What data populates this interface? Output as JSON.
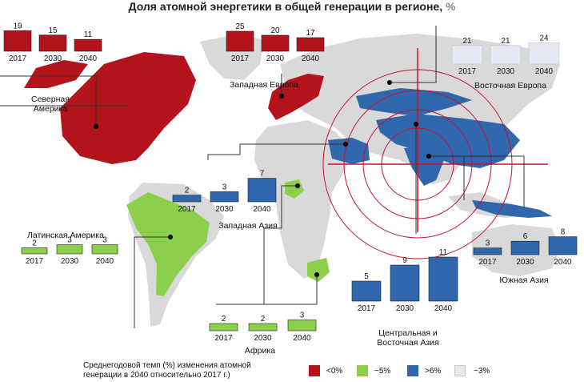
{
  "title": {
    "text": "Доля атомной энергетики в общей генерации в регионе,",
    "unit": "%"
  },
  "colors": {
    "red": "#b3141c",
    "green": "#8ccf4d",
    "blue": "#2f66ac",
    "pale": "#e4e8f0",
    "land": "#d9d9d9"
  },
  "chart_data": {
    "type": "bar",
    "title": "Доля атомной энергетики в общей генерации в регионе, %",
    "categories": [
      "2017",
      "2030",
      "2040"
    ],
    "series": [
      {
        "name": "Северная Америка",
        "values": [
          19,
          15,
          11
        ]
      },
      {
        "name": "Западная Европа",
        "values": [
          25,
          20,
          17
        ]
      },
      {
        "name": "Восточная Европа",
        "values": [
          21,
          21,
          24
        ]
      },
      {
        "name": "Западная Азия",
        "values": [
          2,
          3,
          7
        ]
      },
      {
        "name": "Латинская Америка",
        "values": [
          2,
          3,
          3
        ]
      },
      {
        "name": "Африка",
        "values": [
          2,
          2,
          3
        ]
      },
      {
        "name": "Центральная и Восточная Азия",
        "values": [
          5,
          9,
          11
        ]
      },
      {
        "name": "Южная Азия",
        "values": [
          3,
          6,
          8
        ]
      }
    ]
  },
  "legend": {
    "caption_line1": "Среднегодовой темп (%) изменения атомной",
    "caption_line2": "генерации в 2040 относительно 2017 г.)",
    "items": [
      {
        "label": "<0%",
        "color": "#b3141c"
      },
      {
        "label": "~5%",
        "color": "#8ccf4d"
      },
      {
        "label": ">6%",
        "color": "#2f66ac"
      },
      {
        "label": "~3%",
        "color": "#e4e8f0"
      }
    ]
  }
}
